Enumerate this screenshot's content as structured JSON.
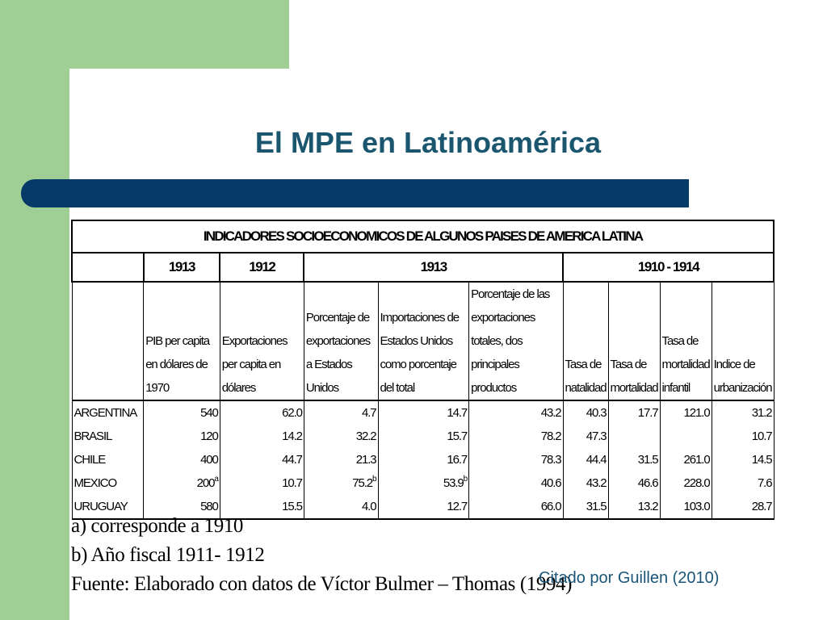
{
  "slide": {
    "title": "El MPE en Latinoamérica"
  },
  "table": {
    "title": "INDICADORES SOCIOECONOMICOS DE ALGUNOS PAISES DE AMERICA LATINA",
    "year_groups": [
      "1913",
      "1912",
      "1913",
      "1910 - 1914"
    ],
    "columns": [
      "PIB per capita en dólares de 1970",
      "Exportaciones per capita en dólares",
      "Porcentaje de exportaciones a Estados Unidos",
      "Importaciones de Estados Unidos como porcentaje del total",
      "Porcentaje de las exportaciones totales, dos principales productos",
      "Tasa de natalidad",
      "Tasa de mortalidad",
      "Tasa de mortalidad infantil",
      "Indice de urbanización"
    ],
    "rows": [
      {
        "country": "ARGENTINA",
        "values": [
          "540",
          "62.0",
          "4.7",
          "14.7",
          "43.2",
          "40.3",
          "17.7",
          "121.0",
          "31.2"
        ]
      },
      {
        "country": "BRASIL",
        "values": [
          "120",
          "14.2",
          "32.2",
          "15.7",
          "78.2",
          "47.3",
          "",
          "",
          "10.7"
        ]
      },
      {
        "country": "CHILE",
        "values": [
          "400",
          "44.7",
          "21.3",
          "16.7",
          "78.3",
          "44.4",
          "31.5",
          "261.0",
          "14.5"
        ]
      },
      {
        "country": "MEXICO",
        "values": [
          "200",
          "10.7",
          "75.2",
          "53.9",
          "40.6",
          "43.2",
          "46.6",
          "228.0",
          "7.6"
        ],
        "superscripts": {
          "pib": "a",
          "export_us": "b",
          "import_us": "b"
        }
      },
      {
        "country": "URUGUAY",
        "values": [
          "580",
          "15.5",
          "4.0",
          "12.7",
          "66.0",
          "31.5",
          "13.2",
          "103.0",
          "28.7"
        ]
      }
    ]
  },
  "notes": {
    "a": "a) corresponde a 1910",
    "b": "b) Año fiscal 1911- 1912",
    "source": "Fuente: Elaborado con datos de Víctor  Bulmer – Thomas (1994)",
    "citation": "Citado por Guillen (2010)"
  },
  "colors": {
    "green_band": "#9fcf95",
    "title_color": "#1b566f",
    "blue_bar": "#053a69",
    "citation_color": "#1a5577"
  }
}
